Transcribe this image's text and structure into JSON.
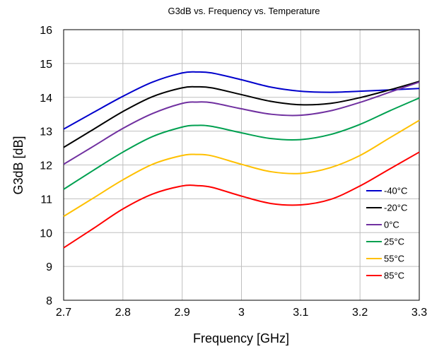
{
  "chart_data": {
    "type": "line",
    "title": "G3dB vs. Frequency vs. Temperature",
    "xlabel": "Frequency [GHz]",
    "ylabel": "G3dB [dB]",
    "xlim": [
      2.7,
      3.3
    ],
    "ylim": [
      8,
      16
    ],
    "x_ticks": [
      "2.7",
      "2.8",
      "2.9",
      "3",
      "3.1",
      "3.2",
      "3.3"
    ],
    "y_ticks": [
      "8",
      "9",
      "10",
      "11",
      "12",
      "13",
      "14",
      "15",
      "16"
    ],
    "grid": true,
    "legend_position": "bottom-right",
    "x": [
      2.7,
      2.75,
      2.8,
      2.85,
      2.9,
      2.925,
      2.95,
      3.0,
      3.05,
      3.1,
      3.15,
      3.2,
      3.25,
      3.3
    ],
    "series": [
      {
        "name": "-40°C",
        "color": "#0000cc",
        "values": [
          13.06,
          13.55,
          14.03,
          14.45,
          14.72,
          14.75,
          14.72,
          14.52,
          14.3,
          14.18,
          14.15,
          14.18,
          14.22,
          14.26
        ]
      },
      {
        "name": "-20°C",
        "color": "#000000",
        "values": [
          12.52,
          13.05,
          13.58,
          14.02,
          14.28,
          14.31,
          14.28,
          14.08,
          13.88,
          13.78,
          13.82,
          13.99,
          14.22,
          14.47
        ]
      },
      {
        "name": "0°C",
        "color": "#7030a0",
        "values": [
          12.02,
          12.55,
          13.08,
          13.52,
          13.82,
          13.86,
          13.84,
          13.66,
          13.5,
          13.47,
          13.6,
          13.85,
          14.15,
          14.45
        ]
      },
      {
        "name": "25°C",
        "color": "#00a050",
        "values": [
          11.28,
          11.84,
          12.38,
          12.84,
          13.12,
          13.17,
          13.14,
          12.95,
          12.78,
          12.75,
          12.9,
          13.2,
          13.6,
          13.98
        ]
      },
      {
        "name": "55°C",
        "color": "#ffc000",
        "values": [
          10.48,
          11.02,
          11.56,
          12.02,
          12.28,
          12.31,
          12.27,
          12.02,
          11.8,
          11.75,
          11.92,
          12.28,
          12.8,
          13.32
        ]
      },
      {
        "name": "85°C",
        "color": "#ff0000",
        "values": [
          9.55,
          10.12,
          10.7,
          11.14,
          11.38,
          11.39,
          11.34,
          11.08,
          10.86,
          10.82,
          10.98,
          11.38,
          11.88,
          12.38
        ]
      }
    ]
  }
}
